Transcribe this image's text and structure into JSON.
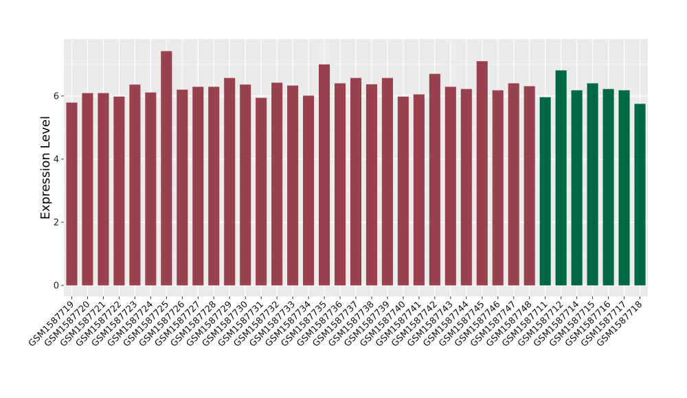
{
  "chart_data": {
    "type": "bar",
    "title": "",
    "xlabel": "",
    "ylabel": "Expression Level",
    "ylim": [
      -0.35,
      7.8
    ],
    "yticks": [
      0,
      2,
      4,
      6
    ],
    "ytick_labels": [
      "0",
      "2",
      "4",
      "6"
    ],
    "grid": true,
    "categories": [
      "GSM1587719",
      "GSM1587720",
      "GSM1587721",
      "GSM1587722",
      "GSM1587723",
      "GSM1587724",
      "GSM1587725",
      "GSM1587726",
      "GSM1587727",
      "GSM1587728",
      "GSM1587729",
      "GSM1587730",
      "GSM1587731",
      "GSM1587732",
      "GSM1587733",
      "GSM1587734",
      "GSM1587735",
      "GSM1587736",
      "GSM1587737",
      "GSM1587738",
      "GSM1587739",
      "GSM1587740",
      "GSM1587741",
      "GSM1587742",
      "GSM1587743",
      "GSM1587744",
      "GSM1587745",
      "GSM1587746",
      "GSM1587747",
      "GSM1587748",
      "GSM1587711",
      "GSM1587712",
      "GSM1587714",
      "GSM1587715",
      "GSM1587716",
      "GSM1587717",
      "GSM1587718"
    ],
    "values": [
      5.79,
      6.09,
      6.09,
      5.98,
      6.36,
      6.11,
      7.42,
      6.2,
      6.29,
      6.29,
      6.57,
      6.36,
      5.94,
      6.42,
      6.33,
      6.01,
      7.0,
      6.4,
      6.57,
      6.37,
      6.57,
      5.98,
      6.05,
      6.7,
      6.29,
      6.22,
      7.1,
      6.18,
      6.4,
      6.31,
      5.96,
      6.81,
      6.18,
      6.4,
      6.22,
      6.18,
      5.75
    ],
    "groups": [
      "a",
      "a",
      "a",
      "a",
      "a",
      "a",
      "a",
      "a",
      "a",
      "a",
      "a",
      "a",
      "a",
      "a",
      "a",
      "a",
      "a",
      "a",
      "a",
      "a",
      "a",
      "a",
      "a",
      "a",
      "a",
      "a",
      "a",
      "a",
      "a",
      "a",
      "b",
      "b",
      "b",
      "b",
      "b",
      "b",
      "b"
    ],
    "colors": {
      "a": "#9A4150",
      "b": "#006846"
    }
  }
}
